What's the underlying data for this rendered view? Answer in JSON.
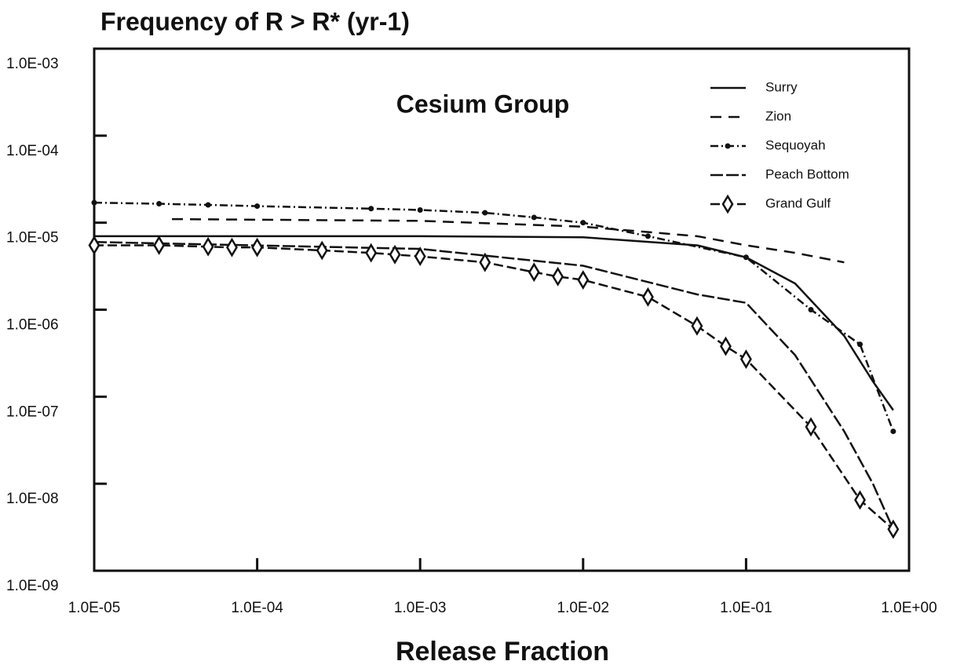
{
  "chart_data": {
    "type": "line",
    "title": "Frequency of R > R* (yr-1)",
    "annotation": "Cesium Group",
    "x_label": "Release Fraction",
    "xlog": true,
    "ylog": true,
    "xlim": [
      1e-05,
      1
    ],
    "ylim": [
      1e-09,
      0.001
    ],
    "xticks": [
      {
        "value": 1e-05,
        "label": "1.0E-05"
      },
      {
        "value": 0.0001,
        "label": "1.0E-04"
      },
      {
        "value": 0.001,
        "label": "1.0E-03"
      },
      {
        "value": 0.01,
        "label": "1.0E-02"
      },
      {
        "value": 0.1,
        "label": "1.0E-01"
      },
      {
        "value": 1,
        "label": "1.0E+00"
      }
    ],
    "yticks": [
      {
        "value": 1e-09,
        "label": "1.0E-09"
      },
      {
        "value": 1e-08,
        "label": "1.0E-08"
      },
      {
        "value": 1e-07,
        "label": "1.0E-07"
      },
      {
        "value": 1e-06,
        "label": "1.0E-06"
      },
      {
        "value": 1e-05,
        "label": "1.0E-05"
      },
      {
        "value": 0.0001,
        "label": "1.0E-04"
      },
      {
        "value": 0.001,
        "label": "1.0E-03"
      }
    ],
    "legend": "top-right",
    "series": [
      {
        "name": "Surry",
        "color": "#111111",
        "dash": "none",
        "marker": "none",
        "x": [
          1e-05,
          0.001,
          0.01,
          0.05,
          0.1,
          0.2,
          0.4,
          0.6,
          0.8
        ],
        "values": [
          7e-06,
          7e-06,
          6.8e-06,
          5.5e-06,
          4e-06,
          2e-06,
          5e-07,
          1.5e-07,
          7e-08
        ]
      },
      {
        "name": "Zion",
        "color": "#111111",
        "dash": "14 9",
        "marker": "none",
        "x": [
          3e-05,
          0.001,
          0.01,
          0.05,
          0.1,
          0.2,
          0.4
        ],
        "values": [
          1.1e-05,
          1.05e-05,
          9e-06,
          7e-06,
          5.5e-06,
          4.5e-06,
          3.5e-06
        ]
      },
      {
        "name": "Sequoyah",
        "color": "#111111",
        "dash": "10 4 2 4",
        "marker": "dot",
        "x": [
          1e-05,
          2.5e-05,
          5e-05,
          0.0001,
          0.0005,
          0.001,
          0.0025,
          0.005,
          0.01,
          0.025,
          0.1,
          0.25,
          0.5,
          0.8
        ],
        "values": [
          1.7e-05,
          1.65e-05,
          1.6e-05,
          1.55e-05,
          1.45e-05,
          1.4e-05,
          1.3e-05,
          1.15e-05,
          1e-05,
          7e-06,
          4e-06,
          1e-06,
          4e-07,
          4e-08
        ]
      },
      {
        "name": "Peach Bottom",
        "color": "#111111",
        "dash": "16 4",
        "marker": "none",
        "x": [
          1e-05,
          0.001,
          0.01,
          0.05,
          0.1,
          0.2,
          0.4,
          0.6,
          0.8
        ],
        "values": [
          6e-06,
          5e-06,
          3.2e-06,
          1.5e-06,
          1.2e-06,
          3e-07,
          4e-08,
          1e-08,
          3e-09
        ]
      },
      {
        "name": "Grand Gulf",
        "color": "#111111",
        "dash": "12 5",
        "marker": "diamond",
        "x": [
          1e-05,
          2.5e-05,
          5e-05,
          7e-05,
          0.0001,
          0.00025,
          0.0005,
          0.0007,
          0.001,
          0.0025,
          0.005,
          0.007,
          0.01,
          0.025,
          0.05,
          0.075,
          0.1,
          0.25,
          0.5,
          0.8
        ],
        "values": [
          5.5e-06,
          5.5e-06,
          5.3e-06,
          5.2e-06,
          5.2e-06,
          4.8e-06,
          4.5e-06,
          4.3e-06,
          4.1e-06,
          3.5e-06,
          2.7e-06,
          2.4e-06,
          2.2e-06,
          1.4e-06,
          6.5e-07,
          3.8e-07,
          2.7e-07,
          4.5e-08,
          6.5e-09,
          3e-09
        ]
      }
    ]
  }
}
